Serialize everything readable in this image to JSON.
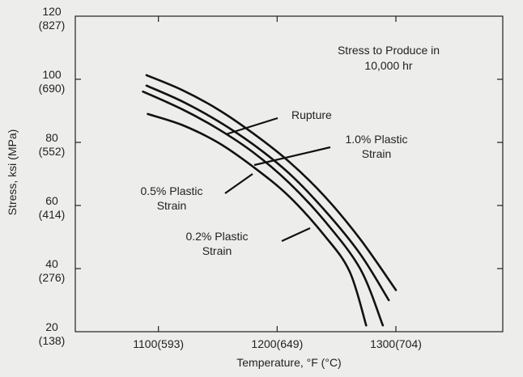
{
  "chart_data": {
    "type": "line",
    "title": "Stress to Produce in 10,000 hr",
    "title_lines": [
      "Stress to Produce in",
      "10,000 hr"
    ],
    "xlabel": "Temperature, °F (°C)",
    "ylabel": "Stress, ksi (MPa)",
    "xlim": [
      1030,
      1390
    ],
    "ylim": [
      20,
      120
    ],
    "grid": false,
    "x_ticks": [
      {
        "value": 1100,
        "label": "1100(593)"
      },
      {
        "value": 1200,
        "label": "1200(649)"
      },
      {
        "value": 1300,
        "label": "1300(704)"
      }
    ],
    "y_ticks": [
      {
        "value": 20,
        "label": "20",
        "sublabel": "(138)"
      },
      {
        "value": 40,
        "label": "40",
        "sublabel": "(276)"
      },
      {
        "value": 60,
        "label": "60",
        "sublabel": "(414)"
      },
      {
        "value": 80,
        "label": "80",
        "sublabel": "(552)"
      },
      {
        "value": 100,
        "label": "100",
        "sublabel": "(690)"
      },
      {
        "value": 120,
        "label": "120",
        "sublabel": "(827)"
      }
    ],
    "series": [
      {
        "name": "Rupture",
        "x": [
          1090,
          1120,
          1150,
          1180,
          1210,
          1240,
          1270,
          1300
        ],
        "y": [
          101.3,
          96.6,
          90.5,
          82.8,
          73.9,
          62.9,
          49.3,
          33.2
        ]
      },
      {
        "name": "1.0% Plastic Strain",
        "x": [
          1090,
          1120,
          1150,
          1180,
          1210,
          1240,
          1270,
          1294
        ],
        "y": [
          98.0,
          93.0,
          86.8,
          79.3,
          70.2,
          58.5,
          44.6,
          30.0
        ]
      },
      {
        "name": "0.5% Plastic Strain",
        "x": [
          1087,
          1120,
          1150,
          1180,
          1210,
          1240,
          1270,
          1289
        ],
        "y": [
          96.1,
          90.5,
          84.3,
          76.8,
          67.2,
          55.1,
          39.9,
          22.0
        ]
      },
      {
        "name": "0.2% Plastic Strain",
        "x": [
          1091,
          1120,
          1150,
          1180,
          1210,
          1240,
          1261,
          1275
        ],
        "y": [
          89.0,
          85.5,
          80.0,
          72.2,
          62.9,
          50.4,
          39.1,
          22.0
        ]
      }
    ],
    "annotations": [
      {
        "series": "Rupture",
        "lines": [
          "Rupture"
        ]
      },
      {
        "series": "1.0% Plastic Strain",
        "lines": [
          "1.0% Plastic",
          "Strain"
        ]
      },
      {
        "series": "0.5% Plastic Strain",
        "lines": [
          "0.5% Plastic",
          "Strain"
        ]
      },
      {
        "series": "0.2% Plastic Strain",
        "lines": [
          "0.2% Plastic",
          "Strain"
        ]
      }
    ]
  }
}
